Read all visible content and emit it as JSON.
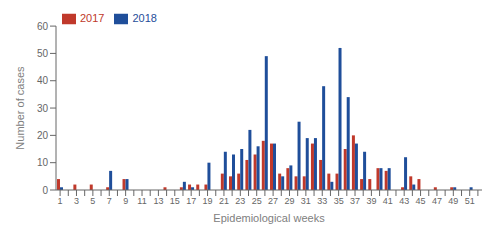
{
  "chart_data": {
    "type": "bar",
    "xlabel": "Epidemiological weeks",
    "ylabel": "Number of cases",
    "categories": [
      "1",
      null,
      "3",
      null,
      "5",
      null,
      "7",
      null,
      "9",
      null,
      "11",
      null,
      "13",
      null,
      "15",
      null,
      "17",
      null,
      "19",
      null,
      "21",
      null,
      "23",
      null,
      "25",
      null,
      "27",
      null,
      "29",
      null,
      "31",
      null,
      "33",
      null,
      "35",
      null,
      "37",
      null,
      "39",
      null,
      "41",
      null,
      "43",
      null,
      "45",
      null,
      "47",
      null,
      "49",
      null,
      "51",
      null
    ],
    "series": [
      {
        "name": "2017",
        "color": "#c0392b",
        "values": [
          4,
          0,
          2,
          0,
          2,
          0,
          1,
          0,
          4,
          0,
          0,
          0,
          0,
          1,
          0,
          1,
          2,
          2,
          2,
          0,
          6,
          5,
          6,
          11,
          13,
          18,
          17,
          6,
          8,
          5,
          5,
          17,
          11,
          6,
          6,
          15,
          20,
          4,
          4,
          8,
          7,
          0,
          1,
          5,
          4,
          0,
          1,
          0,
          1,
          0,
          0,
          0
        ]
      },
      {
        "name": "2018",
        "color": "#1f4e9a",
        "values": [
          1,
          0,
          0,
          0,
          0,
          0,
          7,
          0,
          4,
          0,
          0,
          0,
          0,
          0,
          0,
          3,
          1,
          0,
          10,
          0,
          14,
          13,
          15,
          22,
          16,
          49,
          17,
          5,
          9,
          25,
          19,
          19,
          38,
          3,
          52,
          34,
          17,
          14,
          0,
          8,
          8,
          0,
          12,
          2,
          0,
          0,
          0,
          0,
          1,
          0,
          1,
          0
        ]
      }
    ],
    "ylim": [
      0,
      60
    ],
    "yticks": [
      0,
      10,
      20,
      30,
      40,
      50,
      60
    ],
    "grid": false,
    "legend": "upper left"
  }
}
